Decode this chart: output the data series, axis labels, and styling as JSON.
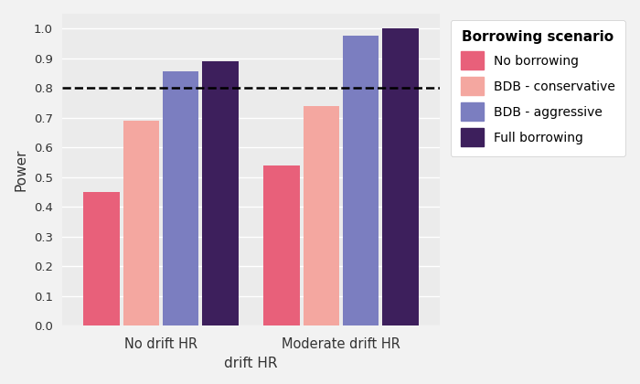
{
  "groups": [
    "No drift HR",
    "Moderate drift HR"
  ],
  "scenarios": [
    "No borrowing",
    "BDB - conservative",
    "BDB - aggressive",
    "Full borrowing"
  ],
  "values": {
    "No drift HR": [
      0.45,
      0.69,
      0.855,
      0.89
    ],
    "Moderate drift HR": [
      0.54,
      0.74,
      0.975,
      1.0
    ]
  },
  "colors": [
    "#E8607A",
    "#F4A7A0",
    "#7B7EC0",
    "#3D1F5C"
  ],
  "xlabel": "drift HR",
  "ylabel": "Power",
  "ylim": [
    0.0,
    1.05
  ],
  "yticks": [
    0.0,
    0.1,
    0.2,
    0.3,
    0.4,
    0.5,
    0.6,
    0.7,
    0.8,
    0.9,
    1.0
  ],
  "hline_y": 0.8,
  "legend_title": "Borrowing scenario",
  "plot_bg_color": "#EBEBEB",
  "fig_bg_color": "#F2F2F2",
  "legend_bg_color": "#FFFFFF",
  "grid_color": "#FFFFFF"
}
